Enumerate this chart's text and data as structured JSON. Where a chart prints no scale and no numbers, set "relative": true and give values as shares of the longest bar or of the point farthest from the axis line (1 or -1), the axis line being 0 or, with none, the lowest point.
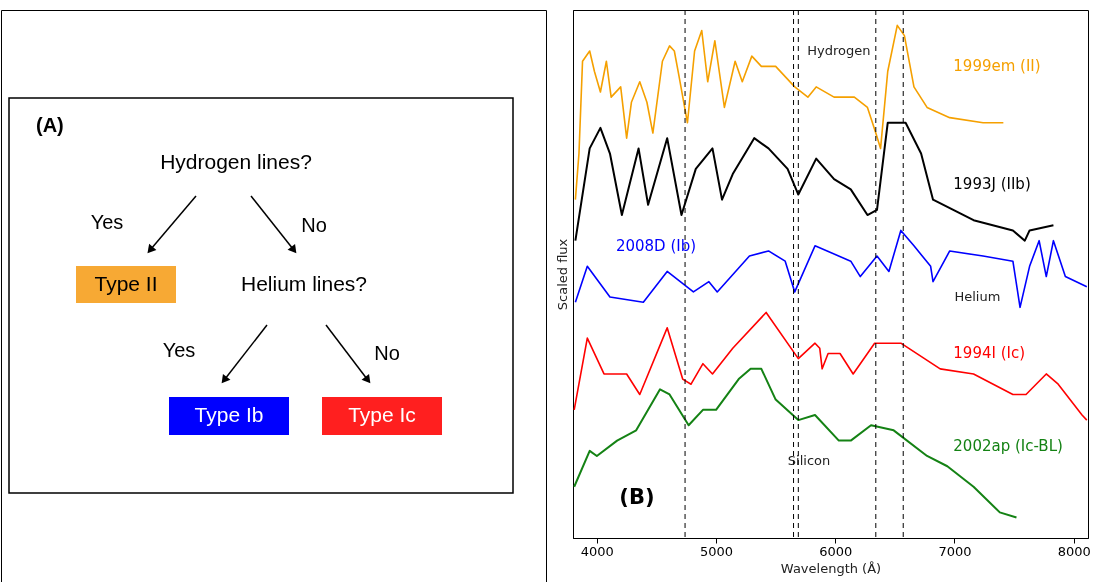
{
  "chart_data": [
    {
      "type": "other",
      "annotations": [
        "(A)",
        "Hydrogen lines?",
        "Yes",
        "No",
        "Helium lines?",
        "Yes",
        "No"
      ],
      "categories": [
        "Type II",
        "Type Ib",
        "Type Ic"
      ],
      "colors": [
        "#f7a934",
        "#0000ff",
        "#ff1f1f"
      ]
    },
    {
      "type": "line",
      "relative": true,
      "xlabel": "Wavelength (Å)",
      "ylabel": "Scaled flux",
      "xlim": [
        3800,
        8120
      ],
      "xticks": [
        4000,
        5000,
        6000,
        7000,
        8000
      ],
      "line_style": "solid",
      "annotations": [
        "(B)",
        "Hydrogen",
        "Helium",
        "Silicon"
      ],
      "ref_lines": [
        {
          "axis": "x",
          "value": 4740,
          "line_style": "dashed",
          "color": "#000000"
        },
        {
          "axis": "x",
          "value": 6340,
          "line_style": "dashed",
          "color": "#000000"
        },
        {
          "axis": "x",
          "value": 6570,
          "line_style": "dashed",
          "color": "#000000"
        },
        {
          "axis": "x",
          "value": 5650,
          "line_style": "dashed",
          "color": "#000000"
        },
        {
          "axis": "x",
          "value": 5690,
          "line_style": "dashed",
          "color": "#000000"
        }
      ],
      "series": [
        {
          "name": "1999em (II)",
          "color": "#f5a000",
          "x": [
            3820,
            3850,
            3880,
            3940,
            3980,
            4030,
            4080,
            4120,
            4200,
            4250,
            4290,
            4360,
            4420,
            4470,
            4550,
            4610,
            4650,
            4690,
            4760,
            4820,
            4880,
            4930,
            4990,
            5070,
            5160,
            5220,
            5300,
            5380,
            5500,
            5660,
            5770,
            5840,
            5990,
            6160,
            6270,
            6340,
            6380,
            6440,
            6520,
            6580,
            6660,
            6770,
            6960,
            7240,
            7410
          ],
          "values": [
            0.66,
            0.75,
            0.93,
            0.95,
            0.91,
            0.87,
            0.93,
            0.86,
            0.88,
            0.78,
            0.85,
            0.89,
            0.85,
            0.79,
            0.93,
            0.96,
            0.95,
            0.9,
            0.81,
            0.95,
            0.99,
            0.89,
            0.97,
            0.84,
            0.93,
            0.89,
            0.94,
            0.92,
            0.92,
            0.88,
            0.86,
            0.88,
            0.86,
            0.86,
            0.84,
            0.79,
            0.76,
            0.91,
            1.0,
            0.98,
            0.88,
            0.84,
            0.82,
            0.81,
            0.81
          ]
        },
        {
          "name": "1993J (IIb)",
          "color": "#000000",
          "x": [
            3820,
            3940,
            4030,
            4110,
            4210,
            4350,
            4430,
            4590,
            4710,
            4830,
            4970,
            5050,
            5140,
            5320,
            5440,
            5600,
            5690,
            5840,
            5990,
            6130,
            6270,
            6350,
            6440,
            6590,
            6720,
            6820,
            7160,
            7490,
            7590,
            7630,
            7830
          ],
          "values": [
            0.58,
            0.76,
            0.8,
            0.75,
            0.63,
            0.76,
            0.65,
            0.78,
            0.63,
            0.72,
            0.76,
            0.66,
            0.71,
            0.78,
            0.76,
            0.72,
            0.67,
            0.74,
            0.7,
            0.68,
            0.63,
            0.64,
            0.81,
            0.81,
            0.75,
            0.66,
            0.62,
            0.6,
            0.58,
            0.6,
            0.61
          ]
        },
        {
          "name": "2008D (Ib)",
          "color": "#0000ff",
          "x": [
            3820,
            3920,
            4110,
            4390,
            4590,
            4810,
            4940,
            5010,
            5280,
            5440,
            5580,
            5660,
            5830,
            6130,
            6210,
            6350,
            6450,
            6550,
            6660,
            6800,
            6820,
            6960,
            7240,
            7490,
            7550,
            7630,
            7710,
            7770,
            7830,
            7930,
            8110
          ],
          "values": [
            0.46,
            0.53,
            0.47,
            0.46,
            0.52,
            0.48,
            0.5,
            0.48,
            0.55,
            0.56,
            0.54,
            0.48,
            0.57,
            0.54,
            0.51,
            0.55,
            0.52,
            0.6,
            0.57,
            0.53,
            0.5,
            0.56,
            0.55,
            0.54,
            0.45,
            0.53,
            0.58,
            0.51,
            0.58,
            0.51,
            0.49
          ]
        },
        {
          "name": "1994I (Ic)",
          "color": "#ff0000",
          "x": [
            3810,
            3920,
            4060,
            4250,
            4360,
            4590,
            4720,
            4790,
            4890,
            4970,
            5140,
            5420,
            5690,
            5830,
            5870,
            5890,
            5940,
            6040,
            6150,
            6330,
            6550,
            6880,
            7160,
            7490,
            7600,
            7770,
            7870,
            8070,
            8110
          ],
          "values": [
            0.25,
            0.39,
            0.32,
            0.32,
            0.28,
            0.41,
            0.31,
            0.3,
            0.34,
            0.32,
            0.37,
            0.44,
            0.35,
            0.38,
            0.37,
            0.33,
            0.36,
            0.36,
            0.32,
            0.38,
            0.38,
            0.33,
            0.32,
            0.28,
            0.28,
            0.32,
            0.3,
            0.24,
            0.23
          ]
        },
        {
          "name": "2002ap (Ic-BL)",
          "color": "#148214",
          "x": [
            3810,
            3940,
            4000,
            4170,
            4330,
            4530,
            4610,
            4770,
            4890,
            5000,
            5190,
            5290,
            5380,
            5500,
            5690,
            5830,
            6030,
            6130,
            6300,
            6490,
            6770,
            6940,
            7160,
            7380,
            7520
          ],
          "values": [
            0.1,
            0.17,
            0.16,
            0.19,
            0.21,
            0.29,
            0.28,
            0.22,
            0.25,
            0.25,
            0.31,
            0.33,
            0.33,
            0.27,
            0.23,
            0.24,
            0.19,
            0.19,
            0.22,
            0.21,
            0.16,
            0.14,
            0.1,
            0.05,
            0.04
          ]
        }
      ]
    }
  ]
}
